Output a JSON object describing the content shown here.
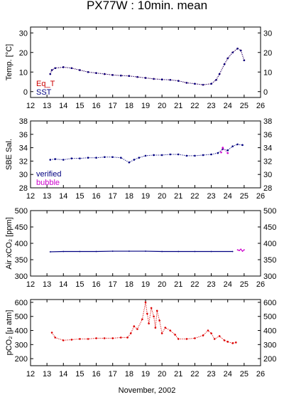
{
  "title": "PX77W : 10min. mean",
  "xlabel": "November, 2002",
  "x_ticks": [
    12,
    13,
    14,
    15,
    16,
    17,
    18,
    19,
    20,
    21,
    22,
    23,
    24,
    25,
    26
  ],
  "chart_data": [
    {
      "type": "scatter",
      "ylabel": "Temp. [°C]",
      "xlim": [
        12,
        26
      ],
      "ylim": [
        -3,
        33
      ],
      "y_ticks": [
        0,
        10,
        20,
        30
      ],
      "legend": [
        {
          "label": "Eq_T",
          "color": "#cc0000"
        },
        {
          "label": "SST",
          "color": "#000080"
        }
      ],
      "legend_position": "bottom-left",
      "series": [
        {
          "name": "Eq_T",
          "color": "#cc0000",
          "x": [
            13.2,
            13.3,
            13.5,
            14.0,
            14.5,
            15.0,
            15.5,
            16.0,
            16.5,
            17.0,
            17.5,
            18.0,
            18.5,
            19.0,
            19.5,
            20.0,
            20.5,
            21.0,
            21.5,
            22.0,
            22.5,
            23.0,
            23.3,
            23.5,
            23.8,
            24.0,
            24.3,
            24.6,
            24.8,
            25.0
          ],
          "y": [
            9,
            11,
            12,
            12.5,
            12,
            11,
            10,
            9.5,
            9,
            8.5,
            8.2,
            8,
            7.5,
            7,
            6.5,
            6.2,
            6,
            5.5,
            4.5,
            4,
            3.5,
            4,
            6,
            9,
            14,
            17,
            20,
            22,
            21,
            16
          ]
        },
        {
          "name": "SST",
          "color": "#000080",
          "x": [
            13.2,
            13.3,
            13.5,
            14.0,
            14.5,
            15.0,
            15.5,
            16.0,
            16.5,
            17.0,
            17.5,
            18.0,
            18.5,
            19.0,
            19.5,
            20.0,
            20.5,
            21.0,
            21.5,
            22.0,
            22.5,
            23.0,
            23.3,
            23.5,
            23.8,
            24.0,
            24.3,
            24.6,
            24.8,
            25.0
          ],
          "y": [
            9,
            11,
            12,
            12.5,
            12,
            11,
            10,
            9.5,
            9,
            8.5,
            8.2,
            8,
            7.5,
            7,
            6.5,
            6.2,
            6,
            5.5,
            4.5,
            4,
            3.5,
            4,
            6,
            9,
            14,
            17,
            20,
            22,
            21,
            16
          ]
        }
      ]
    },
    {
      "type": "scatter",
      "ylabel": "SBE Sal.",
      "xlim": [
        12,
        26
      ],
      "ylim": [
        28,
        38
      ],
      "y_ticks": [
        28,
        30,
        32,
        34,
        36,
        38
      ],
      "legend": [
        {
          "label": "verified",
          "color": "#000080"
        },
        {
          "label": "bubble",
          "color": "#cc00cc"
        }
      ],
      "legend_position": "bottom-left",
      "series": [
        {
          "name": "verified",
          "color": "#000080",
          "x": [
            13.2,
            13.5,
            14.0,
            14.5,
            15.0,
            15.5,
            16.0,
            16.5,
            17.0,
            17.5,
            18.0,
            18.3,
            18.6,
            19.0,
            19.5,
            20.0,
            20.5,
            21.0,
            21.5,
            22.0,
            22.5,
            23.0,
            23.4,
            23.7,
            24.0,
            24.3,
            24.6,
            24.9
          ],
          "y": [
            32.2,
            32.3,
            32.2,
            32.4,
            32.4,
            32.5,
            32.5,
            32.6,
            32.6,
            32.5,
            31.8,
            32.2,
            32.5,
            32.8,
            32.9,
            32.9,
            33.0,
            33.0,
            32.8,
            32.8,
            32.9,
            33.0,
            33.2,
            33.8,
            33.6,
            34.2,
            34.5,
            34.4
          ]
        },
        {
          "name": "bubble",
          "color": "#cc00cc",
          "x": [
            23.6,
            23.7,
            24.0
          ],
          "y": [
            33.3,
            34.0,
            33.2
          ]
        }
      ]
    },
    {
      "type": "line",
      "ylabel": "Air xCO₂ [ppm]",
      "xlim": [
        12,
        26
      ],
      "ylim": [
        300,
        500
      ],
      "y_ticks": [
        300,
        350,
        400,
        450,
        500
      ],
      "series": [
        {
          "name": "",
          "color": "#000080",
          "x": [
            13.2,
            14,
            15,
            16,
            17,
            18,
            19,
            20,
            21,
            22,
            23,
            24.3
          ],
          "y": [
            374,
            375,
            375,
            375,
            376,
            376,
            376,
            375,
            375,
            375,
            375,
            375
          ]
        },
        {
          "name": "",
          "color": "#cc00cc",
          "x": [
            24.6,
            24.7,
            24.8,
            24.9,
            25.0
          ],
          "y": [
            380,
            378,
            382,
            376,
            380
          ]
        }
      ]
    },
    {
      "type": "scatter",
      "ylabel": "pCO₂ [μ atm]",
      "xlim": [
        12,
        26
      ],
      "ylim": [
        150,
        620
      ],
      "y_ticks": [
        200,
        300,
        400,
        500,
        600
      ],
      "series": [
        {
          "name": "",
          "color": "#dd0000",
          "x": [
            13.3,
            13.5,
            14.0,
            14.5,
            15.0,
            15.5,
            16.0,
            16.5,
            17.0,
            17.5,
            17.9,
            18.1,
            18.3,
            18.5,
            18.8,
            19.0,
            19.1,
            19.2,
            19.35,
            19.5,
            19.6,
            19.7,
            19.85,
            20.0,
            20.2,
            20.5,
            20.8,
            21.0,
            21.5,
            22.0,
            22.5,
            22.8,
            23.0,
            23.2,
            23.5,
            23.8,
            24.0,
            24.3,
            24.5
          ],
          "y": [
            385,
            350,
            330,
            335,
            340,
            340,
            345,
            345,
            345,
            350,
            350,
            380,
            430,
            410,
            480,
            600,
            520,
            450,
            560,
            500,
            420,
            540,
            470,
            380,
            420,
            400,
            370,
            340,
            340,
            345,
            365,
            400,
            380,
            340,
            360,
            330,
            320,
            310,
            315
          ]
        }
      ]
    }
  ]
}
